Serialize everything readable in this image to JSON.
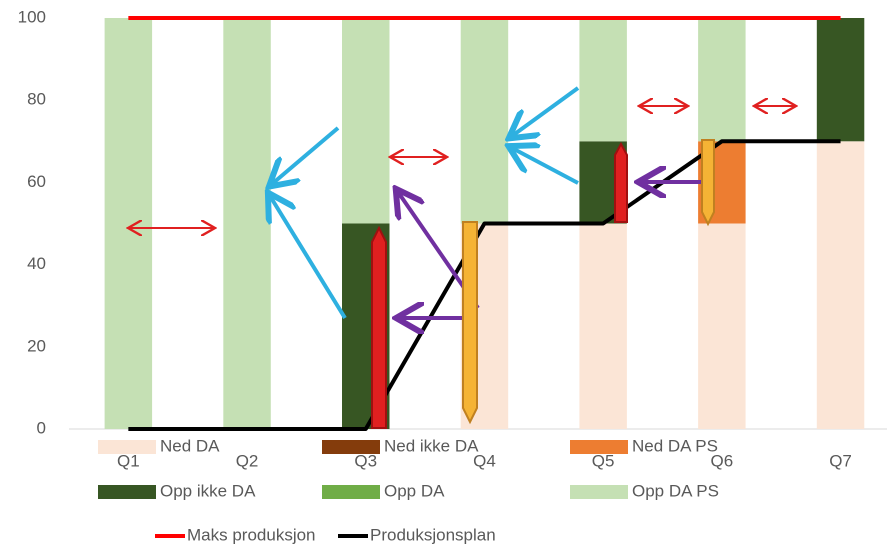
{
  "chart_data": {
    "type": "bar",
    "stacked": true,
    "categories": [
      "Q1",
      "Q2",
      "Q3",
      "Q4",
      "Q5",
      "Q6",
      "Q7"
    ],
    "series": [
      {
        "name": "Ned DA",
        "color": "#fbe5d6",
        "values": [
          0,
          0,
          0,
          50,
          50,
          50,
          70
        ]
      },
      {
        "name": "Ned ikke DA",
        "color": "#843c0c",
        "values": [
          0,
          0,
          0,
          0,
          0,
          0,
          0
        ]
      },
      {
        "name": "Ned DA PS",
        "color": "#ed7d31",
        "values": [
          0,
          0,
          0,
          0,
          0,
          20,
          0
        ]
      },
      {
        "name": "Opp ikke DA",
        "color": "#375623",
        "values": [
          0,
          0,
          50,
          0,
          20,
          0,
          30
        ]
      },
      {
        "name": "Opp DA",
        "color": "#70ad47",
        "values": [
          0,
          0,
          0,
          0,
          0,
          0,
          0
        ]
      },
      {
        "name": "Opp DA PS",
        "color": "#c5e0b4",
        "values": [
          100,
          100,
          50,
          50,
          30,
          30,
          0
        ]
      },
      {
        "name": "Maks produksjon",
        "type": "line",
        "color": "#ff0000",
        "values": [
          100,
          100,
          100,
          100,
          100,
          100,
          100
        ]
      },
      {
        "name": "Produksjonsplan",
        "type": "line",
        "color": "#000000",
        "values": [
          0,
          0,
          0,
          50,
          50,
          70,
          70
        ]
      }
    ],
    "ylim": [
      0,
      100
    ],
    "yticks": [
      0,
      20,
      40,
      60,
      80,
      100
    ],
    "grid": false
  }
}
